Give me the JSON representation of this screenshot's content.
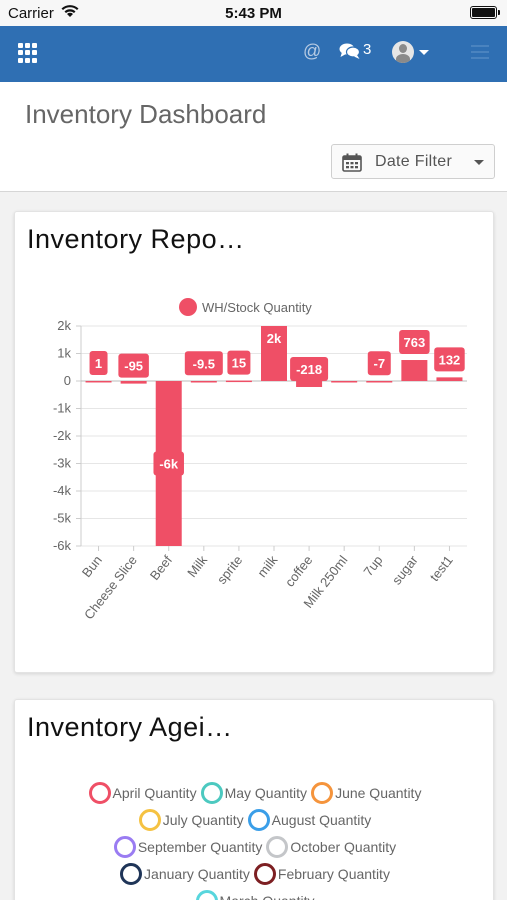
{
  "status_bar": {
    "carrier": "Carrier",
    "time": "5:43 PM"
  },
  "navbar": {
    "at_symbol": "@",
    "chat_count": "3"
  },
  "header": {
    "title": "Inventory Dashboard",
    "date_filter_label": "Date Filter"
  },
  "inventory_report": {
    "title": "Inventory Repo…",
    "chart_data": {
      "type": "bar",
      "categories": [
        "Bun",
        "Cheese Slice",
        "Beef",
        "Milk",
        "sprite",
        "milk",
        "coffee",
        "Milk 250ml",
        "7up",
        "sugar",
        "test1"
      ],
      "series": [
        {
          "name": "WH/Stock Quantity",
          "values": [
            1,
            -95,
            -6000,
            -9.5,
            15,
            2000,
            -218,
            -50,
            -7,
            763,
            132
          ]
        }
      ],
      "data_labels": [
        "1",
        "-95",
        "-6k",
        "-9.5",
        "15",
        "2k",
        "-218",
        "",
        "-7",
        "763",
        "132"
      ],
      "yticks": [
        "2k",
        "1k",
        "0",
        "-1k",
        "-2k",
        "-3k",
        "-4k",
        "-5k",
        "-6k"
      ],
      "ylim": [
        -6000,
        2000
      ],
      "color": "#ef4f66",
      "legend_position": "top",
      "grid": true
    }
  },
  "inventory_ageing": {
    "title": "Inventory Agei…",
    "legend_rows": [
      [
        {
          "label": "April Quantity",
          "color": "#ef4f66"
        },
        {
          "label": "May Quantity",
          "color": "#4cc9c0"
        },
        {
          "label": "June Quantity",
          "color": "#f5943c"
        }
      ],
      [
        {
          "label": "July Quantity",
          "color": "#f5c242"
        },
        {
          "label": "August Quantity",
          "color": "#3a9ee8"
        }
      ],
      [
        {
          "label": "September Quantity",
          "color": "#9a7cf2"
        },
        {
          "label": "October Quantity",
          "color": "#c4c6c9"
        }
      ],
      [
        {
          "label": "January Quantity",
          "color": "#1f3558"
        },
        {
          "label": "February Quantity",
          "color": "#7d1f22"
        }
      ],
      [
        {
          "label": "March Quantity",
          "color": "#58d6dd"
        }
      ]
    ]
  }
}
